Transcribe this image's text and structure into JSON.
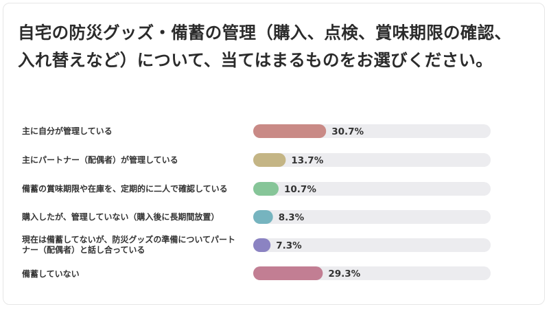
{
  "chart_data": {
    "type": "bar",
    "orientation": "horizontal",
    "title": "自宅の防災グッズ・備蓄の管理（購入、点検、賞味期限の確認、入れ替えなど）について、当てはまるものをお選びください。",
    "categories": [
      "主に自分が管理している",
      "主にパートナー（配偶者）が管理している",
      "備蓄の賞味期限や在庫を、定期的に二人で確認している",
      "購入したが、管理していない（購入後に長期間放置）",
      "現在は備蓄してないが、防災グッズの準備についてパートナー（配偶者）と話し合っている",
      "備蓄していない"
    ],
    "values": [
      30.7,
      13.7,
      10.7,
      8.3,
      7.3,
      29.3
    ],
    "value_labels": [
      "30.7%",
      "13.7%",
      "10.7%",
      "8.3%",
      "7.3%",
      "29.3%"
    ],
    "colors": [
      "#c98a86",
      "#c4b585",
      "#86c598",
      "#76b4bf",
      "#8b83c2",
      "#c27e93"
    ],
    "track_color": "#ececef",
    "unit": "%",
    "xlim": [
      0,
      100
    ],
    "grid": false,
    "legend": "none"
  }
}
